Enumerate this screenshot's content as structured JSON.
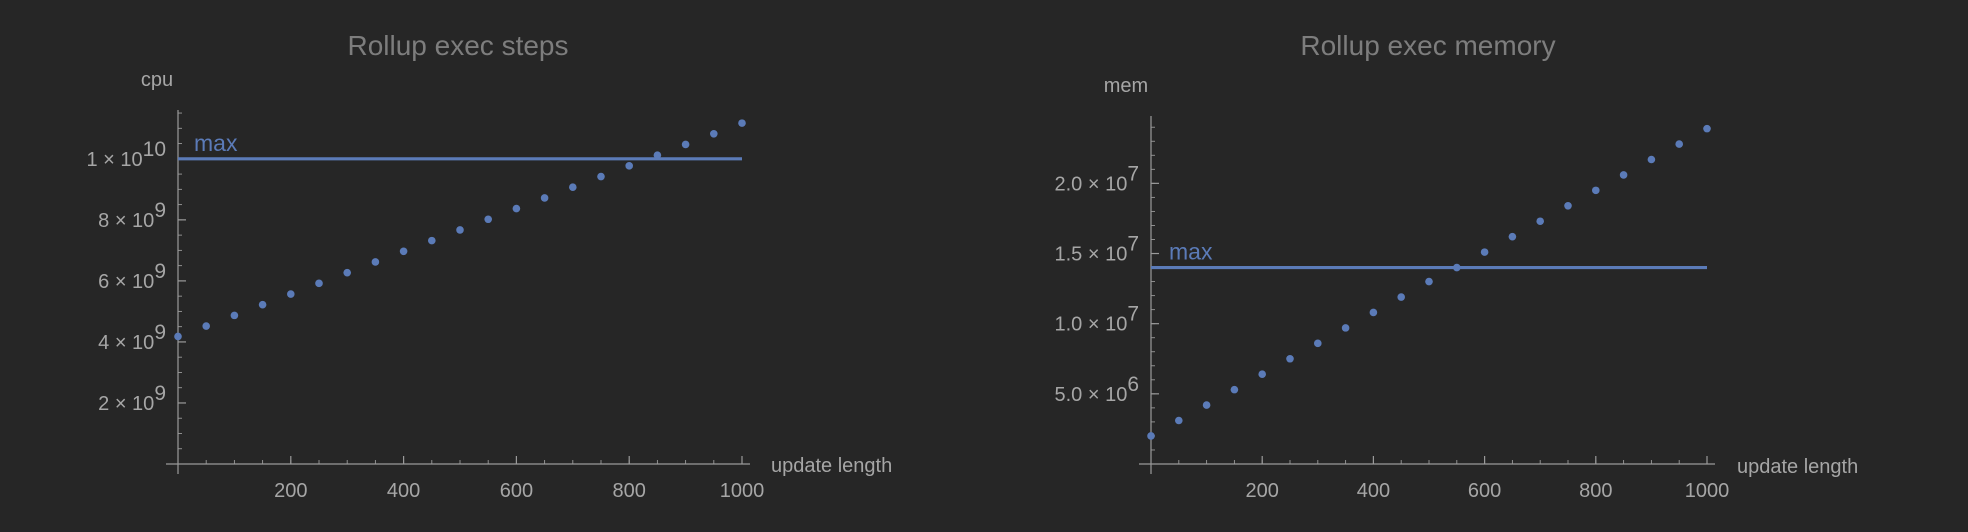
{
  "colors": {
    "background": "#262626",
    "series": "#5b7bb8",
    "text": "#a6a6a6",
    "title": "#7d7d7d"
  },
  "chart_data": [
    {
      "type": "scatter",
      "title": "Rollup exec steps",
      "xlabel": "update length",
      "ylabel": "cpu",
      "xlim": [
        0,
        1000
      ],
      "ylim": [
        0,
        11600000000
      ],
      "x_ticks": [
        200,
        400,
        600,
        800,
        1000
      ],
      "x_tick_labels": [
        "200",
        "400",
        "600",
        "800",
        "1000"
      ],
      "y_ticks": [
        2000000000,
        4000000000,
        6000000000,
        8000000000,
        10000000000
      ],
      "y_tick_labels": [
        {
          "mantissa": "2",
          "exp": "9"
        },
        {
          "mantissa": "4",
          "exp": "9"
        },
        {
          "mantissa": "6",
          "exp": "9"
        },
        {
          "mantissa": "8",
          "exp": "9"
        },
        {
          "mantissa": "1",
          "exp": "10"
        }
      ],
      "y_minor_step": 500000000,
      "x": [
        0,
        50,
        100,
        150,
        200,
        250,
        300,
        350,
        400,
        450,
        500,
        550,
        600,
        650,
        700,
        750,
        800,
        850,
        900,
        950,
        1000
      ],
      "series": [
        {
          "values": [
            4180000000,
            4520000000,
            4870000000,
            5220000000,
            5570000000,
            5920000000,
            6270000000,
            6620000000,
            6970000000,
            7320000000,
            7670000000,
            8020000000,
            8370000000,
            8720000000,
            9070000000,
            9420000000,
            9770000000,
            10120000000,
            10470000000,
            10820000000,
            11170000000
          ]
        }
      ],
      "reference_line": {
        "label": "max",
        "value": 10000000000
      },
      "grid": false
    },
    {
      "type": "scatter",
      "title": "Rollup exec memory",
      "xlabel": "update length",
      "ylabel": "mem",
      "xlim": [
        0,
        1000
      ],
      "ylim": [
        0,
        24800000
      ],
      "x_ticks": [
        200,
        400,
        600,
        800,
        1000
      ],
      "x_tick_labels": [
        "200",
        "400",
        "600",
        "800",
        "1000"
      ],
      "y_ticks": [
        5000000,
        10000000,
        15000000,
        20000000
      ],
      "y_tick_labels": [
        {
          "mantissa": "5.0",
          "exp": "6"
        },
        {
          "mantissa": "1.0",
          "exp": "7"
        },
        {
          "mantissa": "1.5",
          "exp": "7"
        },
        {
          "mantissa": "2.0",
          "exp": "7"
        }
      ],
      "y_minor_step": 1000000,
      "x": [
        0,
        50,
        100,
        150,
        200,
        250,
        300,
        350,
        400,
        450,
        500,
        550,
        600,
        650,
        700,
        750,
        800,
        850,
        900,
        950,
        1000
      ],
      "series": [
        {
          "values": [
            2000000,
            3100000,
            4200000,
            5300000,
            6400000,
            7500000,
            8600000,
            9700000,
            10800000,
            11900000,
            13000000,
            14000000,
            15100000,
            16200000,
            17300000,
            18400000,
            19500000,
            20600000,
            21700000,
            22800000,
            23900000
          ]
        }
      ],
      "reference_line": {
        "label": "max",
        "value": 14000000
      },
      "grid": false
    }
  ]
}
